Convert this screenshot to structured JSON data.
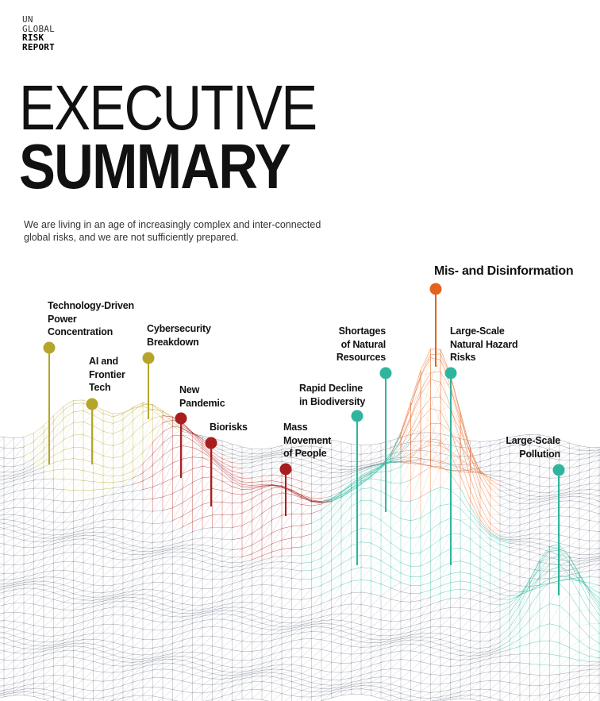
{
  "brand": {
    "line1": "UN",
    "line2": "GLOBAL",
    "line3": "RISK",
    "line4": "REPORT"
  },
  "title": {
    "line1": "EXECUTIVE",
    "line2": "SUMMARY"
  },
  "intro": "We are living in an age of increasingly complex and inter-connected global risks, and we are not sufficiently prepared.",
  "colors": {
    "olive": "#b5a52a",
    "red": "#a81d1d",
    "orange": "#e5621f",
    "teal": "#2fb59d",
    "mesh": "#2a3550"
  },
  "risks": [
    {
      "id": "technology-driven-power-concentration",
      "label": "Technology-Driven\nPower\nConcentration",
      "group": "olive"
    },
    {
      "id": "ai-and-frontier-tech",
      "label": "AI and\nFrontier\nTech",
      "group": "olive"
    },
    {
      "id": "cybersecurity-breakdown",
      "label": "Cybersecurity\nBreakdown",
      "group": "olive"
    },
    {
      "id": "new-pandemic",
      "label": "New\nPandemic",
      "group": "red"
    },
    {
      "id": "biorisks",
      "label": "Biorisks",
      "group": "red"
    },
    {
      "id": "mass-movement-of-people",
      "label": "Mass\nMovement\nof People",
      "group": "red"
    },
    {
      "id": "rapid-decline-in-biodiversity",
      "label": "Rapid Decline\nin Biodiversity",
      "group": "teal"
    },
    {
      "id": "shortages-of-natural-resources",
      "label": "Shortages\nof Natural\nResources",
      "group": "teal"
    },
    {
      "id": "mis-and-disinformation",
      "label": "Mis- and Disinformation",
      "group": "orange"
    },
    {
      "id": "large-scale-natural-hazard-risks",
      "label": "Large-Scale\nNatural Hazard\nRisks",
      "group": "teal"
    },
    {
      "id": "large-scale-pollution",
      "label": "Large-Scale\nPollution",
      "group": "teal"
    }
  ]
}
